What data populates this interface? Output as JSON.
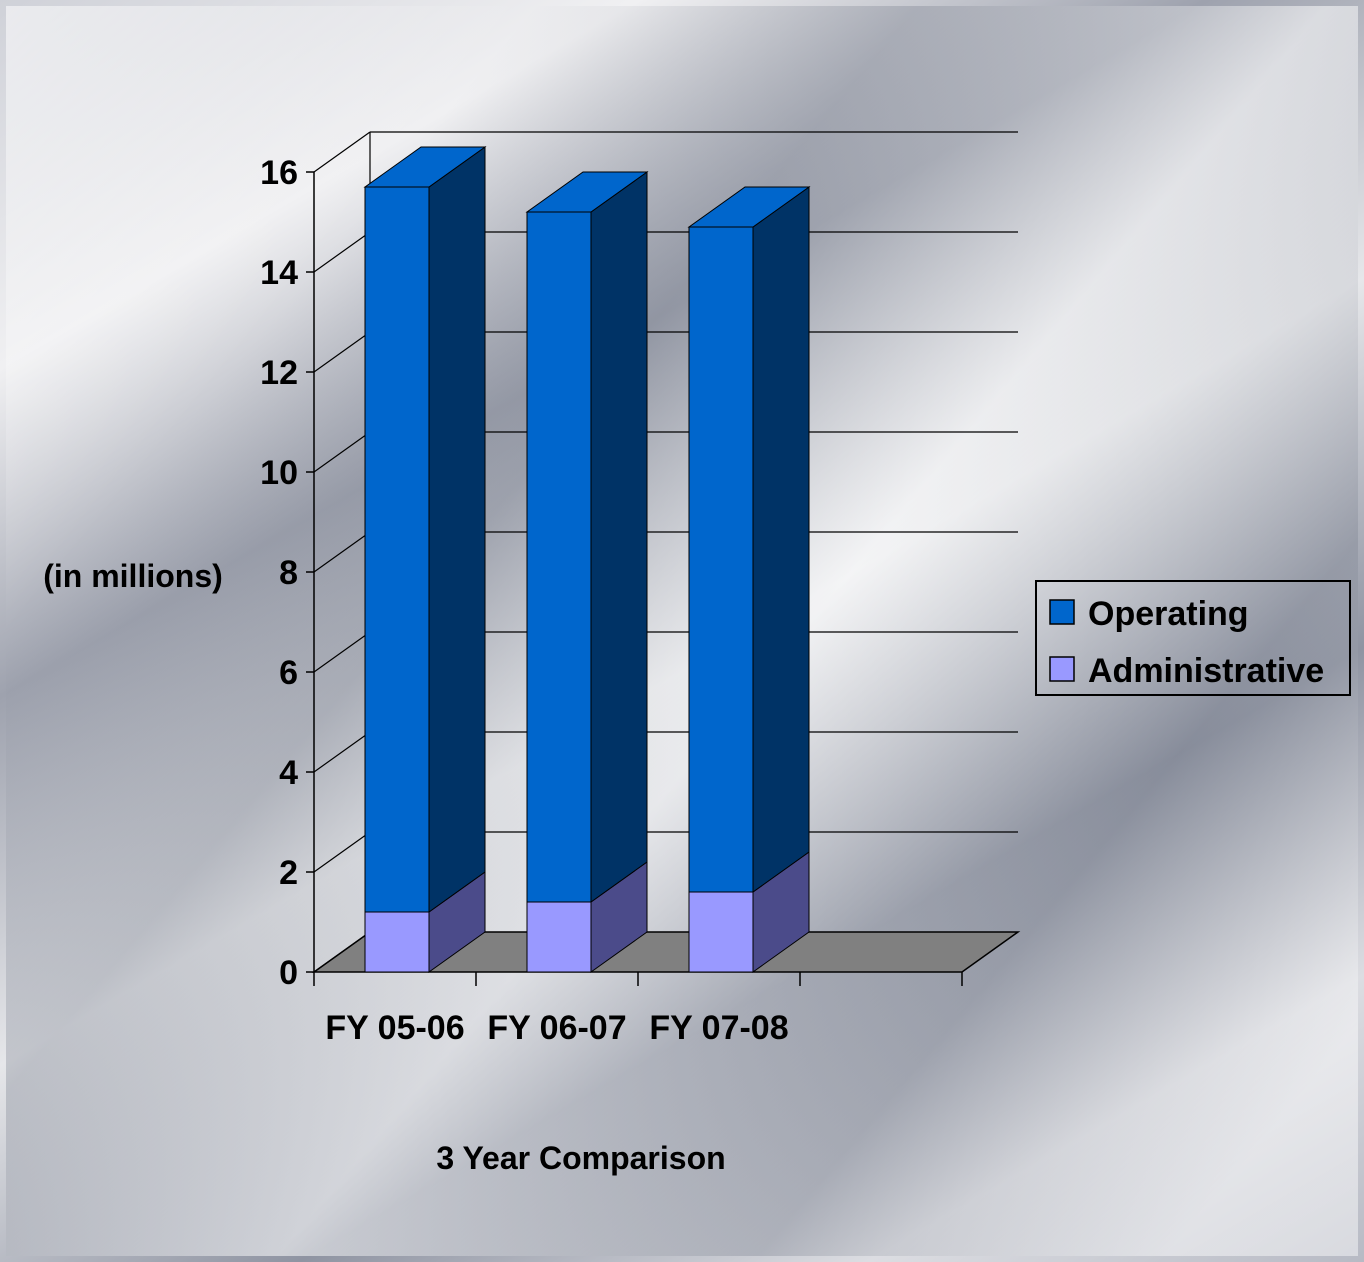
{
  "chart_data": {
    "type": "bar",
    "stacked": true,
    "three_d": true,
    "categories": [
      "FY 05-06",
      "FY 06-07",
      "FY 07-08"
    ],
    "series": [
      {
        "name": "Administrative",
        "values": [
          1.2,
          1.4,
          1.6
        ],
        "color": "#9999ff",
        "side_color": "#4b4b8a"
      },
      {
        "name": "Operating",
        "values": [
          14.5,
          13.8,
          13.3
        ],
        "color": "#0066cc",
        "side_color": "#003366"
      }
    ],
    "title": "",
    "xlabel": "3 Year Comparison",
    "ylabel": "(in millions)",
    "ylim": [
      0,
      16
    ],
    "yticks": [
      0,
      2,
      4,
      6,
      8,
      10,
      12,
      14,
      16
    ],
    "grid": true,
    "legend_position": "right"
  }
}
